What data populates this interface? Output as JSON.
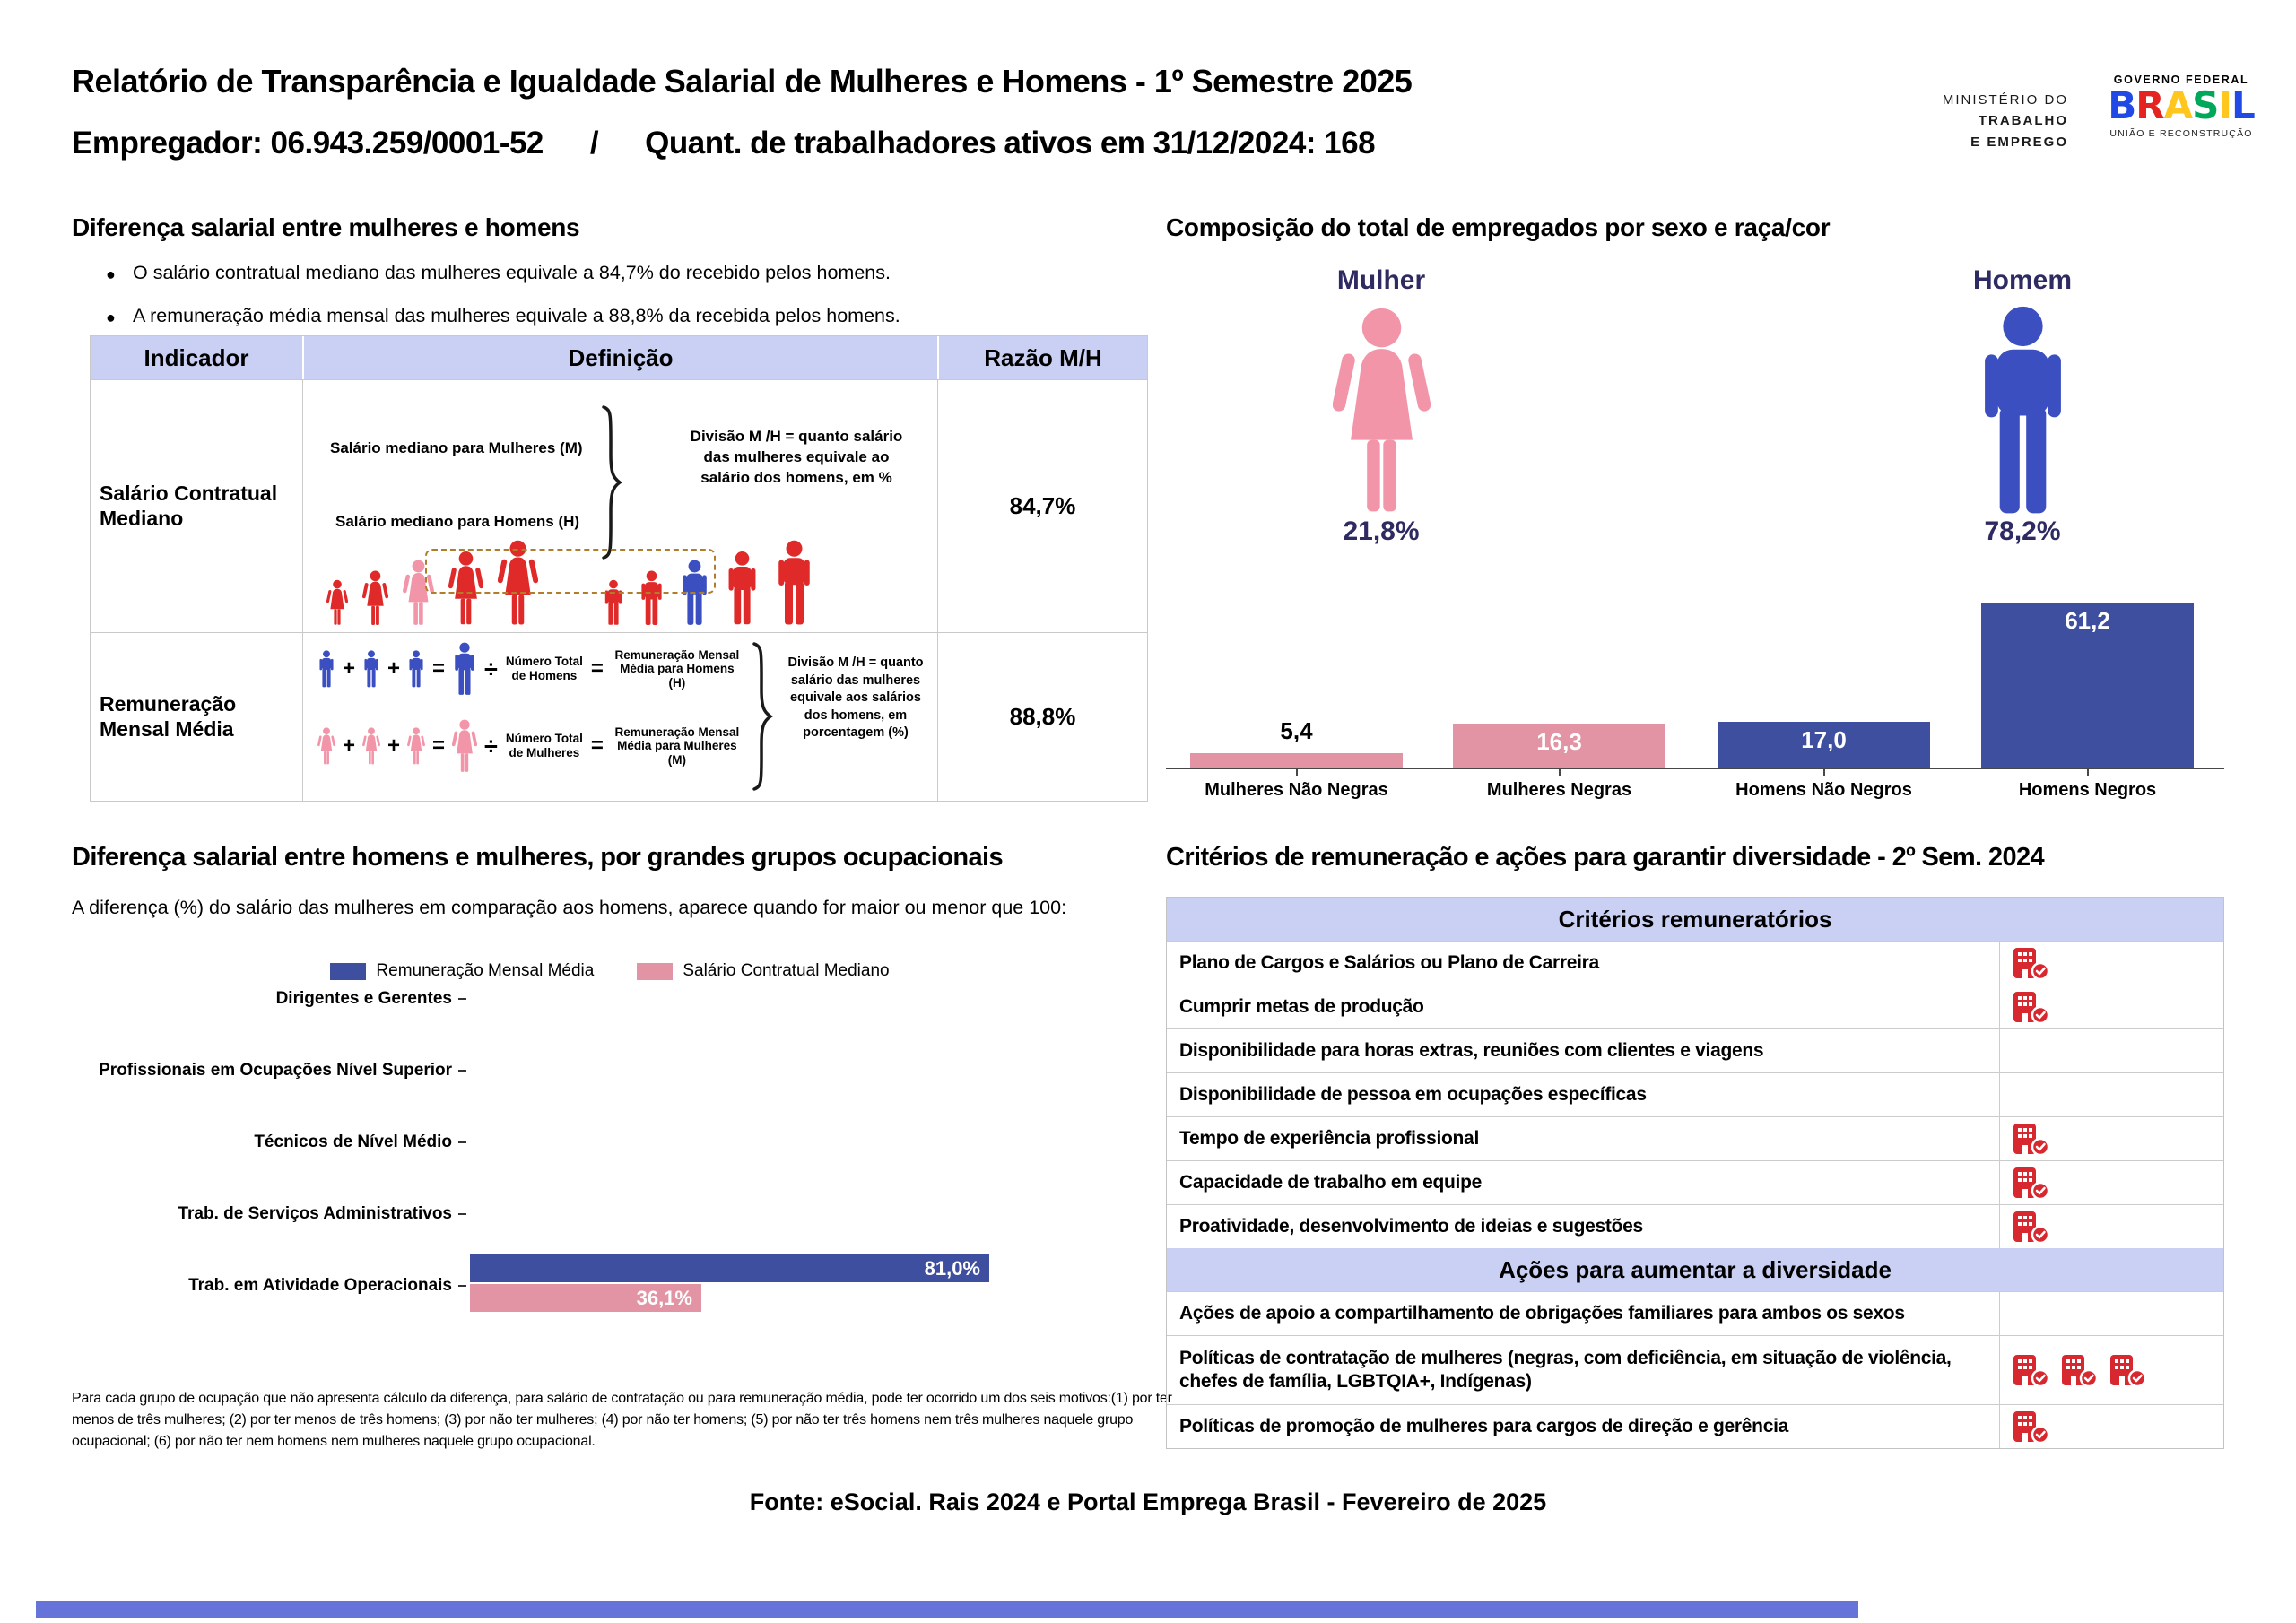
{
  "colors": {
    "red": "#E02A2A",
    "pink": "#F295A9",
    "blue": "#3B4FC1",
    "bar_blue": "#3E4F9F",
    "bar_pink": "#E294A4",
    "lavender": "#C9D0F4",
    "dark_indigo": "#2E2A62",
    "icon_red": "#D7282F",
    "strip_blue": "#6673D8"
  },
  "header": {
    "title": "Relatório de Transparência e Igualdade Salarial de Mulheres e Homens - 1º Semestre 2025",
    "employer": "Empregador: 06.943.259/0001-52",
    "separator": "/",
    "workers": "Quant. de trabalhadores ativos em 31/12/2024: 168"
  },
  "logos": {
    "ministry": [
      "MINISTÉRIO DO",
      "TRABALHO",
      "E EMPREGO"
    ],
    "gov_header": "GOVERNO FEDERAL",
    "gov_name": "BRASIL",
    "gov_letter_colors": [
      "#2049E6",
      "#E52320",
      "#FFC61E",
      "#00A859",
      "#FFC61E",
      "#2049E6"
    ],
    "gov_tagline": "UNIÃO E RECONSTRUÇÃO"
  },
  "gap_section": {
    "title": "Diferença salarial entre mulheres e homens",
    "bullets": [
      "O salário contratual mediano das mulheres equivale a 84,7% do recebido pelos homens.",
      "A remuneração média mensal das mulheres equivale a 88,8% da recebida pelos homens."
    ],
    "table": {
      "headers": [
        "Indicador",
        "Definição",
        "Razão M/H"
      ],
      "row1": {
        "indicator": "Salário Contratual Mediano",
        "women_line": "Salário mediano para Mulheres (M)",
        "men_line": "Salário mediano para Homens (H)",
        "note": "Divisão M /H = quanto salário das mulheres equivale ao salário dos homens, em %",
        "ratio": "84,7%"
      },
      "row2": {
        "indicator": "Remuneração Mensal Média",
        "plus": "+",
        "equals": "=",
        "divide": "÷",
        "men_divisor": "Número Total de Homens",
        "men_result": "Remuneração Mensal Média para Homens (H)",
        "women_divisor": "Número Total de Mulheres",
        "women_result": "Remuneração Mensal Média para Mulheres (M)",
        "note": "Divisão M /H = quanto salário das mulheres equivale aos salários dos homens, em porcentagem (%)",
        "ratio": "88,8%"
      }
    }
  },
  "composition": {
    "title": "Composição do total de empregados por sexo e raça/cor",
    "female_label": "Mulher",
    "female_pct": "21,8%",
    "male_label": "Homem",
    "male_pct": "78,2%"
  },
  "occupational": {
    "title": "Diferença salarial entre homens e mulheres, por grandes grupos ocupacionais",
    "subtitle": "A diferença (%) do salário das mulheres em comparação aos homens, aparece quando for maior ou menor que 100:",
    "legend": [
      "Remuneração Mensal Média",
      "Salário Contratual Mediano"
    ],
    "footnote": "Para cada grupo de ocupação que não apresenta cálculo da diferença, para salário de contratação ou para remuneração média, pode ter ocorrido um dos seis motivos:(1) por ter menos de três mulheres; (2) por ter menos de três homens; (3) por não ter mulheres; (4) por não ter homens; (5) por não ter três homens nem três mulheres naquele grupo ocupacional; (6) por não ter nem homens nem mulheres naquele grupo ocupacional."
  },
  "criteria": {
    "title": "Critérios de remuneração e ações para garantir diversidade - 2º Sem. 2024",
    "section1_header": "Critérios remuneratórios",
    "section2_header": "Ações para aumentar a diversidade",
    "rows": [
      {
        "label": "Plano de Cargos e Salários ou Plano de Carreira",
        "checks": 1
      },
      {
        "label": "Cumprir metas de produção",
        "checks": 1
      },
      {
        "label": "Disponibilidade para horas extras, reuniões com clientes e viagens",
        "checks": 0
      },
      {
        "label": "Disponibilidade de pessoa em ocupações específicas",
        "checks": 0
      },
      {
        "label": "Tempo de experiência profissional",
        "checks": 1
      },
      {
        "label": "Capacidade de trabalho em equipe",
        "checks": 1
      },
      {
        "label": "Proatividade, desenvolvimento de ideias e sugestões",
        "checks": 1
      },
      {
        "label": "Ações de apoio a compartilhamento de obrigações familiares para ambos os sexos",
        "checks": 0
      },
      {
        "label": "Políticas de contratação de mulheres (negras, com deficiência, em situação de violência, chefes de família, LGBTQIA+, Indígenas)",
        "checks": 3
      },
      {
        "label": "Políticas de promoção de mulheres para cargos de direção e gerência",
        "checks": 1
      }
    ]
  },
  "footer": {
    "source": "Fonte: eSocial. Rais 2024 e Portal Emprega Brasil - Fevereiro de 2025"
  },
  "chart_data": [
    {
      "type": "bar",
      "title": "Composição do total de empregados por sexo e raça/cor",
      "categories": [
        "Mulheres Não Negras",
        "Mulheres Negras",
        "Homens Não Negros",
        "Homens Negros"
      ],
      "values": [
        5.4,
        16.3,
        17.0,
        61.2
      ],
      "value_labels": [
        "5,4",
        "16,3",
        "17,0",
        "61,2"
      ],
      "colors": [
        "#E294A4",
        "#E294A4",
        "#3E4F9F",
        "#3E4F9F"
      ],
      "ylim": [
        0,
        65
      ],
      "grid": false,
      "legend": false
    },
    {
      "type": "bar-horizontal",
      "title": "Diferença salarial entre homens e mulheres, por grandes grupos ocupacionais",
      "categories": [
        "Dirigentes e Gerentes",
        "Profissionais em Ocupações Nível Superior",
        "Técnicos de Nível Médio",
        "Trab. de Serviços Administrativos",
        "Trab. em Atividade Operacionais"
      ],
      "series": [
        {
          "name": "Remuneração Mensal Média",
          "color": "#3E4F9F",
          "values": [
            null,
            null,
            null,
            null,
            81.0
          ],
          "value_labels": [
            "",
            "",
            "",
            "",
            "81,0%"
          ]
        },
        {
          "name": "Salário Contratual Mediano",
          "color": "#E294A4",
          "values": [
            null,
            null,
            null,
            null,
            36.1
          ],
          "value_labels": [
            "",
            "",
            "",
            "",
            "36,1%"
          ]
        }
      ],
      "xlim": [
        0,
        100
      ],
      "grid": false,
      "legend_position": "top"
    }
  ]
}
